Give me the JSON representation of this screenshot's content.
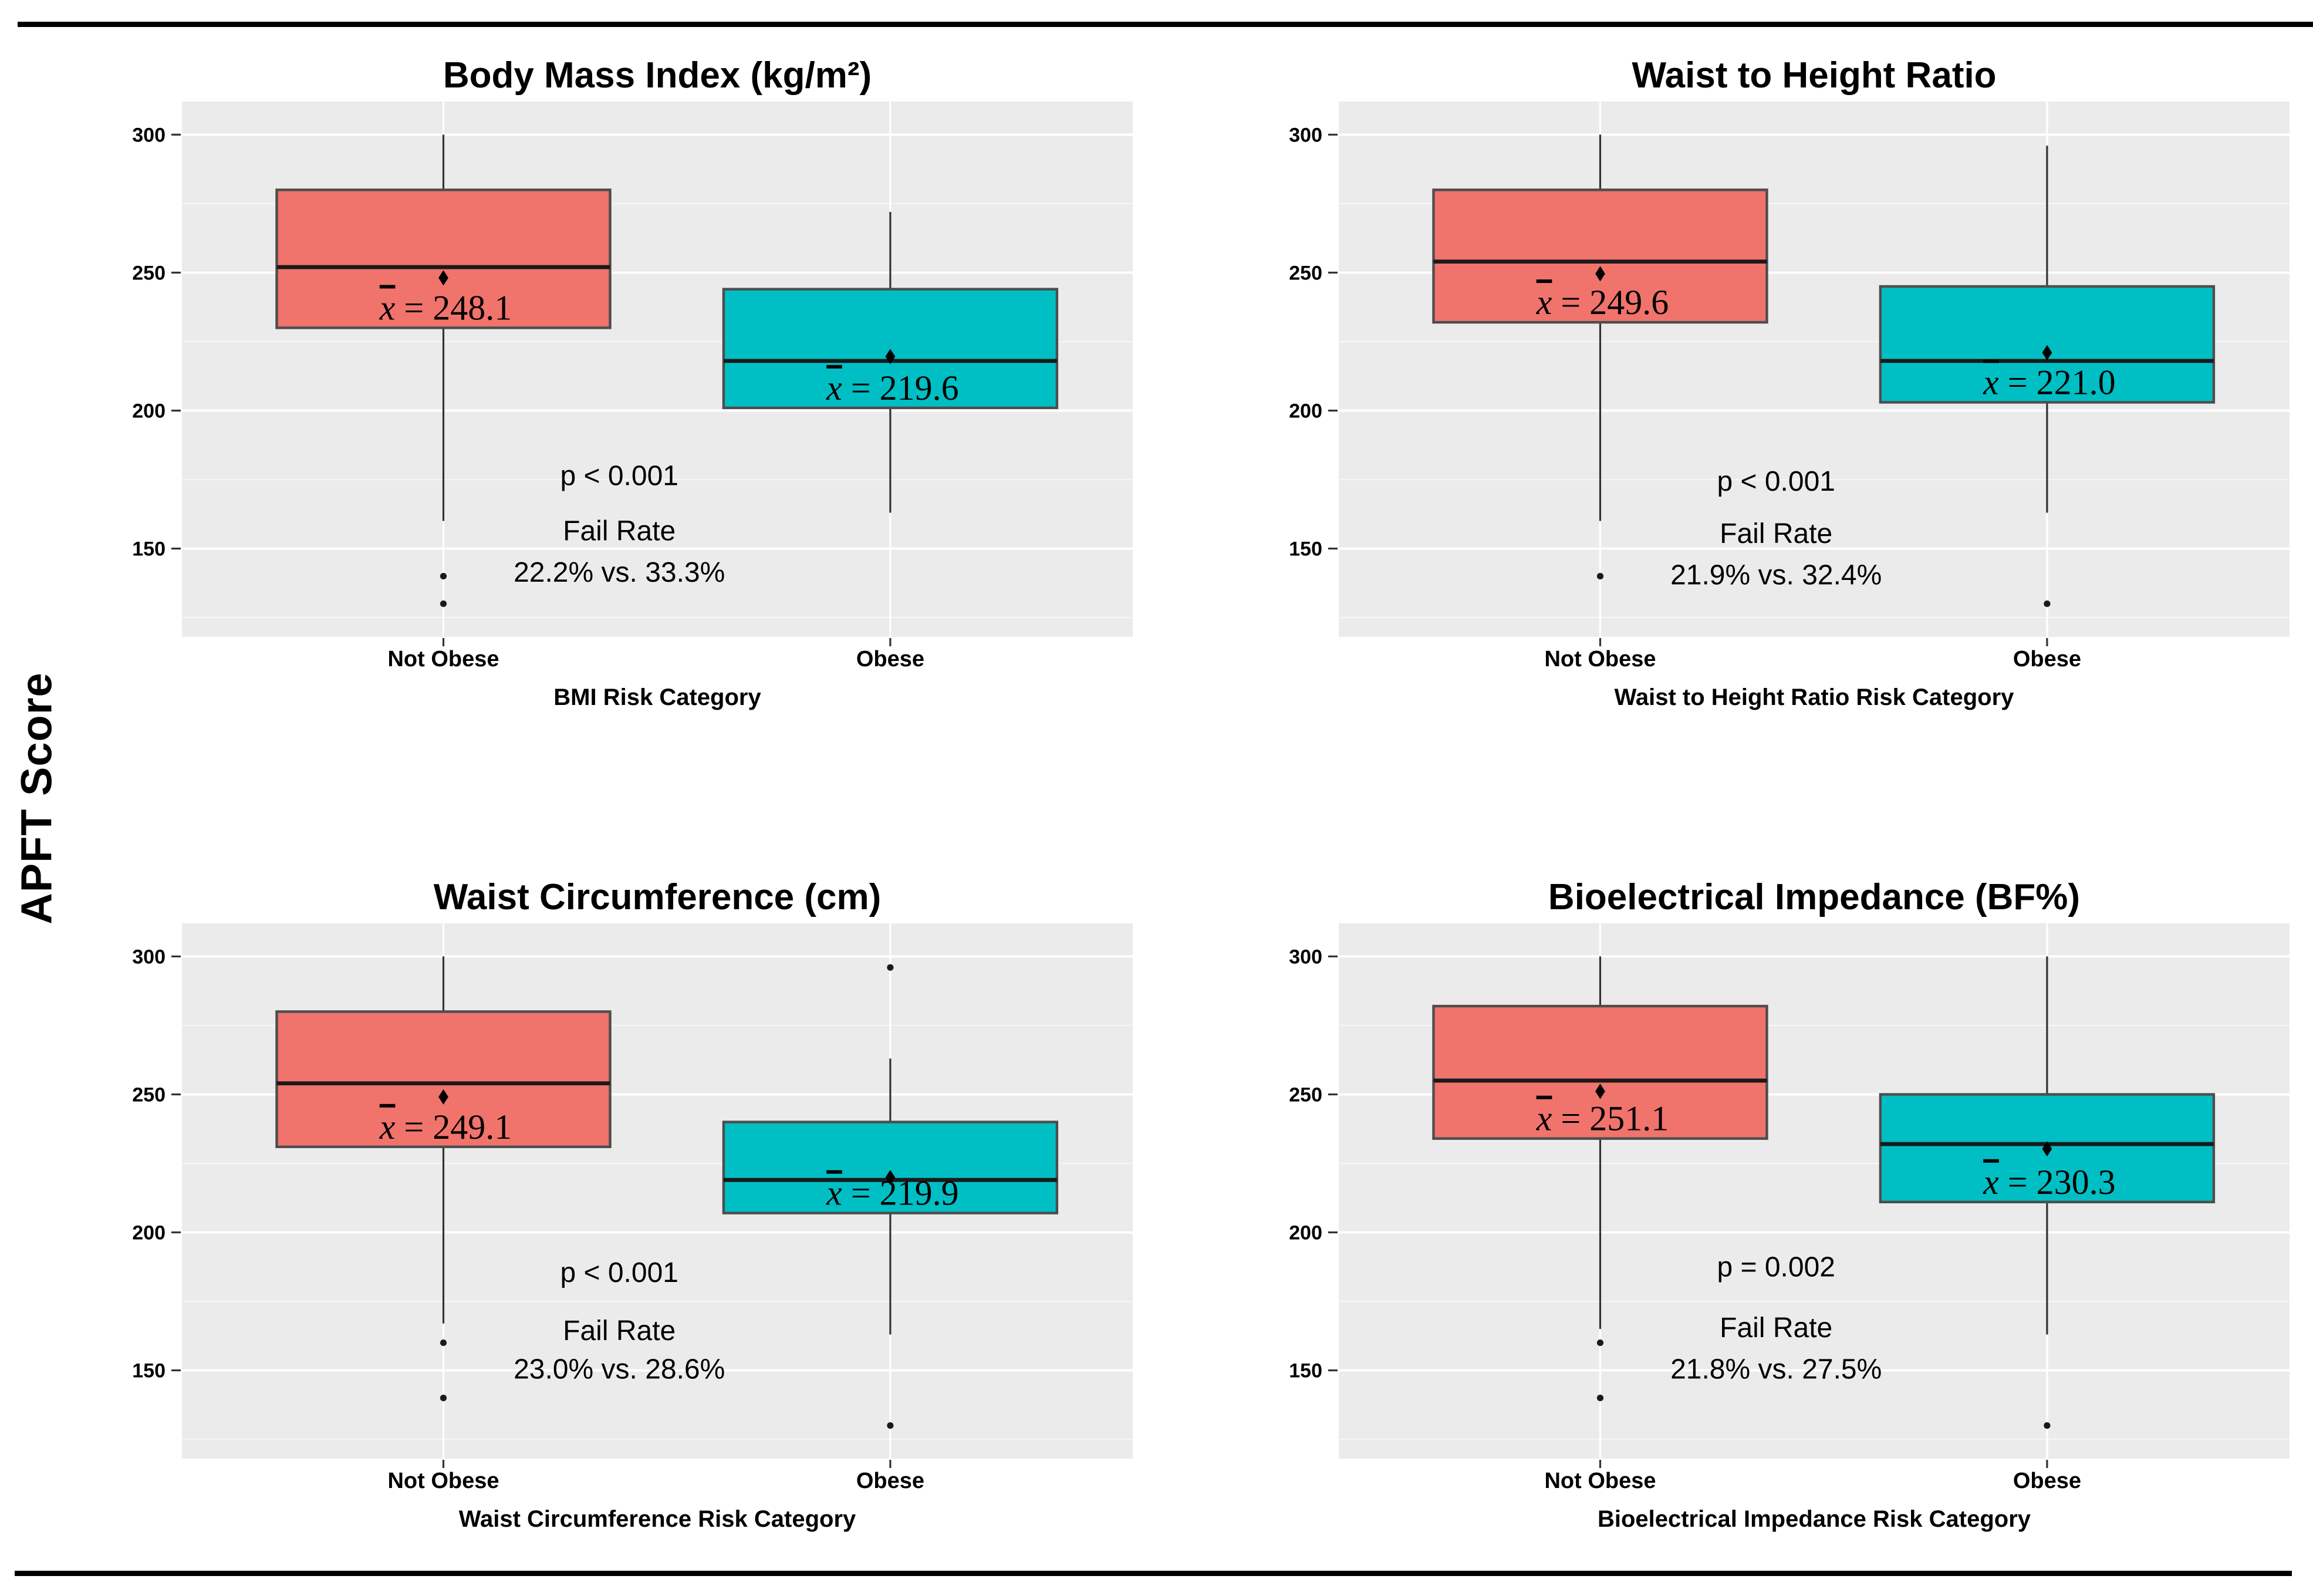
{
  "figure": {
    "ylabel": "APFT Score"
  },
  "colors": {
    "page_bg": "#FFFFFF",
    "panel_bg": "#EBEBEB",
    "grid_major": "#FFFFFF",
    "grid_minor": "#F5F5F5",
    "not_obese_fill": "#F0736C",
    "obese_fill": "#00BFC4",
    "box_border": "#4D4D4D",
    "median_line": "#1A1A1A",
    "whisker": "#333333",
    "outlier": "#1A1A1A",
    "mean_marker": "#000000",
    "text": "#000000",
    "tick_mark": "#333333",
    "rule": "#000000"
  },
  "chart_data": [
    {
      "type": "boxplot",
      "title": "Body Mass Index (kg/m²)",
      "xlabel": "BMI Risk Category",
      "ylabel": "APFT Score",
      "categories": [
        "Not Obese",
        "Obese"
      ],
      "yticks": [
        300,
        250,
        200,
        150
      ],
      "yminor": [
        275,
        225,
        175,
        125
      ],
      "ylim": [
        118,
        312
      ],
      "grid": true,
      "annotations": {
        "p_label": "p < 0.001",
        "p_y": 173,
        "fail_label": "Fail Rate",
        "fail_y": 153,
        "rates_label": "22.2% vs. 33.3%",
        "rates_y": 138,
        "x_frac": 0.46
      },
      "series": [
        {
          "name": "Not Obese",
          "color_key": "not_obese_fill",
          "whisker_low": 160,
          "q1": 230,
          "median": 252,
          "q3": 280,
          "whisker_high": 300,
          "mean": 248.1,
          "outliers": [
            140,
            130
          ]
        },
        {
          "name": "Obese",
          "color_key": "obese_fill",
          "whisker_low": 163,
          "q1": 201,
          "median": 218,
          "q3": 244,
          "whisker_high": 272,
          "mean": 219.6,
          "outliers": []
        }
      ]
    },
    {
      "type": "boxplot",
      "title": "Waist to Height Ratio",
      "xlabel": "Waist to Height Ratio Risk Category",
      "ylabel": "APFT Score",
      "categories": [
        "Not Obese",
        "Obese"
      ],
      "yticks": [
        300,
        250,
        200,
        150
      ],
      "yminor": [
        275,
        225,
        175,
        125
      ],
      "ylim": [
        118,
        312
      ],
      "grid": true,
      "annotations": {
        "p_label": "p < 0.001",
        "p_y": 171,
        "fail_label": "Fail Rate",
        "fail_y": 152,
        "rates_label": "21.9% vs. 32.4%",
        "rates_y": 137,
        "x_frac": 0.46
      },
      "series": [
        {
          "name": "Not Obese",
          "color_key": "not_obese_fill",
          "whisker_low": 160,
          "q1": 232,
          "median": 254,
          "q3": 280,
          "whisker_high": 300,
          "mean": 249.6,
          "outliers": [
            140
          ]
        },
        {
          "name": "Obese",
          "color_key": "obese_fill",
          "whisker_low": 163,
          "q1": 203,
          "median": 218,
          "q3": 245,
          "whisker_high": 296,
          "mean": 221.0,
          "outliers": [
            130
          ]
        }
      ]
    },
    {
      "type": "boxplot",
      "title": "Waist Circumference (cm)",
      "xlabel": "Waist Circumference Risk Category",
      "ylabel": "APFT Score",
      "categories": [
        "Not Obese",
        "Obese"
      ],
      "yticks": [
        300,
        250,
        200,
        150
      ],
      "yminor": [
        275,
        225,
        175,
        125
      ],
      "ylim": [
        118,
        312
      ],
      "grid": true,
      "annotations": {
        "p_label": "p < 0.001",
        "p_y": 182,
        "fail_label": "Fail Rate",
        "fail_y": 161,
        "rates_label": "23.0% vs. 28.6%",
        "rates_y": 147,
        "x_frac": 0.46
      },
      "series": [
        {
          "name": "Not Obese",
          "color_key": "not_obese_fill",
          "whisker_low": 167,
          "q1": 231,
          "median": 254,
          "q3": 280,
          "whisker_high": 300,
          "mean": 249.1,
          "outliers": [
            160,
            140
          ]
        },
        {
          "name": "Obese",
          "color_key": "obese_fill",
          "whisker_low": 163,
          "q1": 207,
          "median": 219,
          "q3": 240,
          "whisker_high": 263,
          "mean": 219.9,
          "outliers": [
            296,
            130
          ]
        }
      ]
    },
    {
      "type": "boxplot",
      "title": "Bioelectrical Impedance (BF%)",
      "xlabel": "Bioelectrical Impedance Risk Category",
      "ylabel": "APFT Score",
      "categories": [
        "Not Obese",
        "Obese"
      ],
      "yticks": [
        300,
        250,
        200,
        150
      ],
      "yminor": [
        275,
        225,
        175,
        125
      ],
      "ylim": [
        118,
        312
      ],
      "grid": true,
      "annotations": {
        "p_label": "p = 0.002",
        "p_y": 184,
        "fail_label": "Fail Rate",
        "fail_y": 162,
        "rates_label": "21.8% vs. 27.5%",
        "rates_y": 147,
        "x_frac": 0.46
      },
      "series": [
        {
          "name": "Not Obese",
          "color_key": "not_obese_fill",
          "whisker_low": 165,
          "q1": 234,
          "median": 255,
          "q3": 282,
          "whisker_high": 300,
          "mean": 251.1,
          "outliers": [
            160,
            140
          ]
        },
        {
          "name": "Obese",
          "color_key": "obese_fill",
          "whisker_low": 163,
          "q1": 211,
          "median": 232,
          "q3": 250,
          "whisker_high": 300,
          "mean": 230.3,
          "outliers": [
            130
          ]
        }
      ]
    }
  ]
}
